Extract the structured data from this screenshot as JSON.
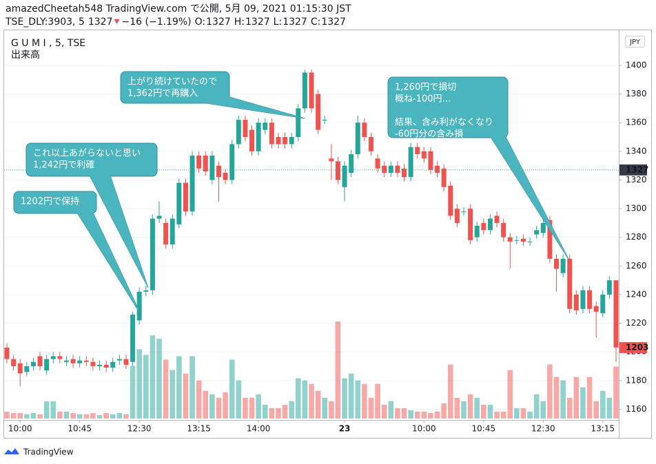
{
  "header": {
    "title": "amazedCheetah548 TradingView.com で公開, 5月 09, 2021 01:15:30 JST",
    "symbol": "TSE_DLY:3903, 5",
    "last": 1327,
    "change": "−16 (−1.19%)",
    "ohlc": [
      {
        "label": "O:",
        "value": 1327
      },
      {
        "label": "H:",
        "value": 1327
      },
      {
        "label": "L:",
        "value": 1327
      },
      {
        "label": "C:",
        "value": 1327
      }
    ]
  },
  "chart_data": {
    "type": "candlestick",
    "legend": "G U M I , 5, TSE",
    "volume_label": "出来高",
    "currency": "JPY",
    "up_color": "#26a69a",
    "down_color": "#ef5350",
    "ylim": [
      1140,
      1424
    ],
    "yticks": [
      1160,
      1180,
      1200,
      1220,
      1240,
      1260,
      1280,
      1300,
      1320,
      1340,
      1360,
      1380,
      1400
    ],
    "grid": true,
    "reference_price": 1327,
    "categories": [
      null,
      null,
      "10:00",
      null,
      null,
      null,
      null,
      null,
      null,
      null,
      null,
      "10:45",
      null,
      null,
      null,
      null,
      null,
      null,
      null,
      null,
      "12:30",
      null,
      null,
      null,
      null,
      null,
      null,
      null,
      null,
      "13:15",
      null,
      null,
      null,
      null,
      null,
      null,
      null,
      null,
      "14:00",
      null,
      null,
      null,
      null,
      null,
      null,
      null,
      null,
      null,
      null,
      null,
      null,
      "23",
      null,
      null,
      null,
      null,
      null,
      null,
      null,
      null,
      null,
      null,
      null,
      "10:00",
      null,
      null,
      null,
      null,
      null,
      null,
      null,
      null,
      "10:45",
      null,
      null,
      null,
      null,
      null,
      null,
      null,
      null,
      "12:30",
      null,
      null,
      null,
      null,
      null,
      null,
      null,
      null,
      "13:15",
      null,
      null
    ],
    "open": [
      1203,
      1195,
      1192,
      1186,
      1190,
      1197,
      1187,
      1195,
      1197,
      1193,
      1195,
      1192,
      1194,
      1193,
      1190,
      1191,
      1189,
      1194,
      1195,
      1193,
      1222,
      1242,
      1243,
      1293,
      1290,
      1275,
      1289,
      1318,
      1298,
      1337,
      1337,
      1320,
      1330,
      1325,
      1320,
      1345,
      1362,
      1355,
      1340,
      1355,
      1360,
      1350,
      1350,
      1345,
      1350,
      1370,
      1395,
      1380,
      1362,
      1335,
      1333,
      1315,
      1325,
      1338,
      1360,
      1350,
      1335,
      1330,
      1325,
      1330,
      1328,
      1322,
      1343,
      1340,
      1340,
      1330,
      1328,
      1316,
      1300,
      1298,
      1300,
      1280,
      1290,
      1285,
      1295,
      1290,
      1280,
      1278,
      1279,
      1277,
      1282,
      1283,
      1292,
      1265,
      1255,
      1265,
      1240,
      1230,
      1243,
      1232,
      1227,
      1240,
      1250
    ],
    "high": [
      1206,
      1198,
      1195,
      1193,
      1196,
      1200,
      1198,
      1200,
      1200,
      1197,
      1198,
      1197,
      1197,
      1196,
      1194,
      1194,
      1196,
      1198,
      1198,
      1228,
      1245,
      1246,
      1296,
      1305,
      1293,
      1296,
      1321,
      1321,
      1340,
      1340,
      1340,
      1340,
      1333,
      1328,
      1348,
      1365,
      1365,
      1358,
      1363,
      1363,
      1363,
      1353,
      1353,
      1353,
      1373,
      1397,
      1397,
      1383,
      1365,
      1345,
      1336,
      1333,
      1341,
      1365,
      1363,
      1353,
      1338,
      1333,
      1333,
      1333,
      1331,
      1346,
      1346,
      1343,
      1343,
      1333,
      1331,
      1319,
      1303,
      1301,
      1303,
      1291,
      1293,
      1296,
      1298,
      1293,
      1283,
      1281,
      1282,
      1280,
      1288,
      1293,
      1295,
      1268,
      1268,
      1268,
      1243,
      1246,
      1246,
      1235,
      1243,
      1253,
      1250
    ],
    "low": [
      1192,
      1187,
      1176,
      1183,
      1187,
      1187,
      1184,
      1192,
      1192,
      1190,
      1189,
      1189,
      1190,
      1187,
      1187,
      1186,
      1186,
      1191,
      1188,
      1190,
      1219,
      1239,
      1240,
      1290,
      1272,
      1272,
      1286,
      1295,
      1295,
      1325,
      1323,
      1317,
      1305,
      1317,
      1317,
      1342,
      1347,
      1337,
      1337,
      1352,
      1342,
      1342,
      1342,
      1342,
      1347,
      1367,
      1367,
      1352,
      1359,
      1320,
      1317,
      1305,
      1322,
      1335,
      1347,
      1337,
      1325,
      1322,
      1322,
      1322,
      1319,
      1319,
      1335,
      1332,
      1324,
      1322,
      1312,
      1292,
      1287,
      1295,
      1275,
      1277,
      1282,
      1282,
      1287,
      1277,
      1258,
      1275,
      1274,
      1274,
      1279,
      1280,
      1262,
      1242,
      1252,
      1227,
      1226,
      1227,
      1227,
      1210,
      1224,
      1237,
      1193
    ],
    "close": [
      1195,
      1190,
      1185,
      1190,
      1193,
      1190,
      1195,
      1197,
      1195,
      1194,
      1192,
      1194,
      1193,
      1190,
      1191,
      1189,
      1193,
      1195,
      1191,
      1226,
      1242,
      1243,
      1293,
      1295,
      1275,
      1293,
      1318,
      1298,
      1337,
      1328,
      1326,
      1337,
      1322,
      1320,
      1345,
      1362,
      1350,
      1340,
      1360,
      1360,
      1345,
      1345,
      1345,
      1350,
      1370,
      1395,
      1370,
      1355,
      1362,
      1333,
      1320,
      1330,
      1338,
      1360,
      1350,
      1340,
      1328,
      1325,
      1330,
      1325,
      1322,
      1343,
      1338,
      1335,
      1327,
      1325,
      1315,
      1295,
      1290,
      1298,
      1278,
      1288,
      1285,
      1293,
      1290,
      1280,
      1277,
      1278,
      1277,
      1277,
      1285,
      1290,
      1265,
      1258,
      1265,
      1230,
      1229,
      1243,
      1230,
      1228,
      1240,
      1250,
      1203
    ],
    "volume": [
      10,
      8,
      8,
      6,
      8,
      6,
      25,
      25,
      10,
      10,
      8,
      6,
      6,
      8,
      5,
      8,
      6,
      8,
      6,
      76,
      100,
      92,
      120,
      115,
      85,
      70,
      90,
      65,
      90,
      55,
      40,
      35,
      30,
      38,
      85,
      55,
      30,
      30,
      35,
      20,
      15,
      15,
      20,
      25,
      58,
      55,
      50,
      40,
      30,
      25,
      140,
      58,
      65,
      55,
      50,
      30,
      50,
      20,
      25,
      15,
      15,
      12,
      10,
      10,
      8,
      10,
      22,
      78,
      30,
      25,
      35,
      30,
      20,
      20,
      10,
      10,
      70,
      15,
      15,
      10,
      35,
      25,
      78,
      60,
      55,
      30,
      60,
      45,
      60,
      25,
      40,
      30,
      75
    ],
    "annotations": [
      {
        "lines": [
          "上がり続けていたので",
          "1,362円で再購入"
        ]
      },
      {
        "lines": [
          "これ以上あがらないと思い",
          "1,242円で利確"
        ]
      },
      {
        "lines": [
          "1202円で保持"
        ]
      },
      {
        "lines": [
          "1,260円で損切",
          "概ね-100円…",
          "",
          "結果、含み利がなくなり",
          "-60円分の含み損"
        ]
      }
    ]
  },
  "footer": {
    "brand": "TradingView"
  }
}
